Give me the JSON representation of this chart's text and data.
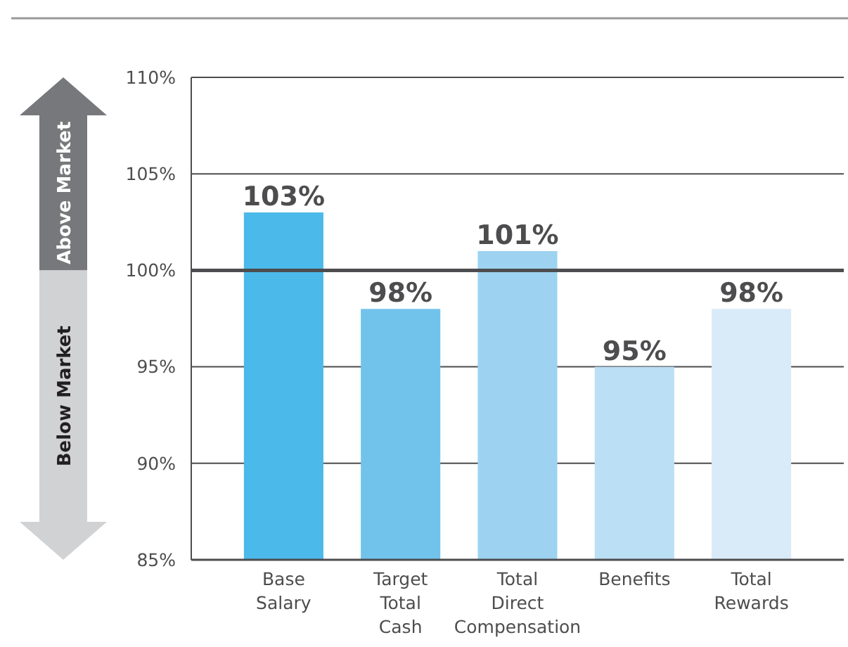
{
  "chart_data": {
    "type": "bar",
    "categories": [
      "Base Salary",
      "Target Total Cash",
      "Total Direct Compensation",
      "Benefits",
      "Total Rewards"
    ],
    "values": [
      103,
      98,
      101,
      95,
      98
    ],
    "colors": [
      "#4bb9e9",
      "#72c3eb",
      "#9dd3f0",
      "#bbdff5",
      "#d9ebf8"
    ],
    "value_labels": [
      "103%",
      "98%",
      "101%",
      "95%",
      "98%"
    ],
    "ylim": [
      85,
      110
    ],
    "yticks": [
      {
        "value": 85,
        "label": "85%"
      },
      {
        "value": 90,
        "label": "90%"
      },
      {
        "value": 95,
        "label": "95%"
      },
      {
        "value": 100,
        "label": "100%"
      },
      {
        "value": 105,
        "label": "105%"
      },
      {
        "value": 110,
        "label": "110%"
      }
    ],
    "grid": "y",
    "ref_lines": [
      {
        "axis": "y",
        "value": 100
      }
    ],
    "annotations": [
      "Above Market",
      "Below Market"
    ]
  }
}
